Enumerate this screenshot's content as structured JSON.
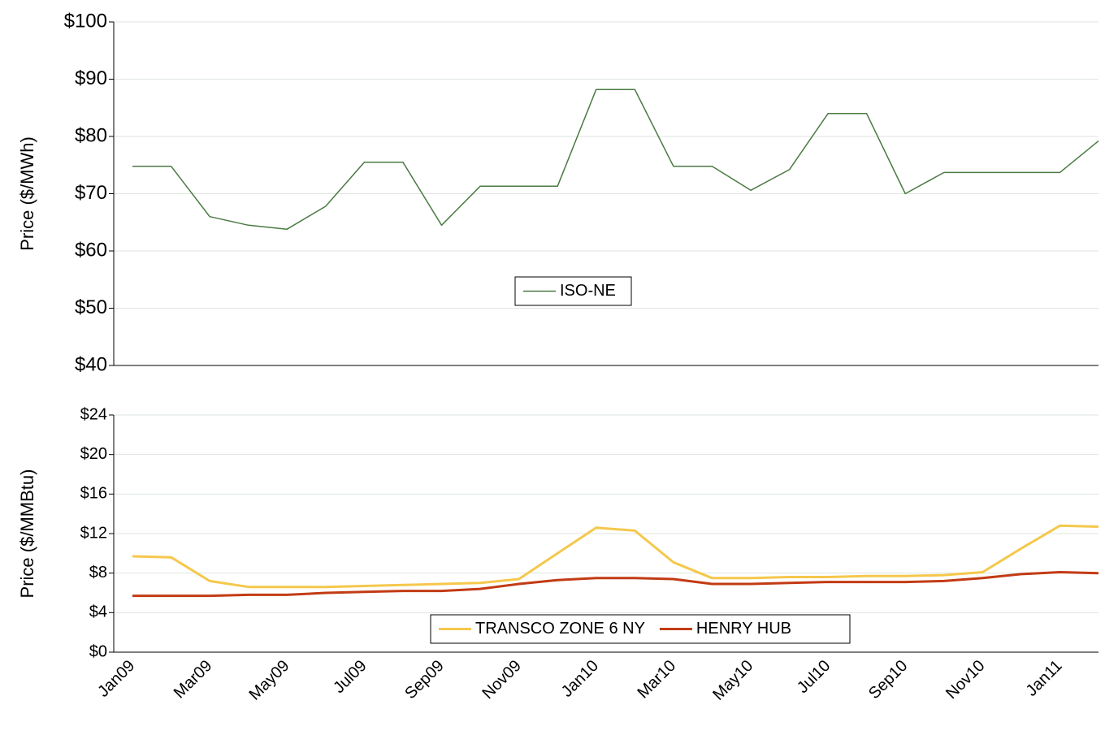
{
  "chart_data": [
    {
      "type": "line",
      "y_label": "Price ($/MWh)",
      "ylim": [
        40,
        100
      ],
      "yticks": [
        {
          "value": 40,
          "label": "$40"
        },
        {
          "value": 50,
          "label": "$50"
        },
        {
          "value": 60,
          "label": "$60"
        },
        {
          "value": 70,
          "label": "$70"
        },
        {
          "value": 80,
          "label": "$80"
        },
        {
          "value": 90,
          "label": "$90"
        },
        {
          "value": 100,
          "label": "$100"
        }
      ],
      "grid": true,
      "series": [
        {
          "name": "ISO-NE",
          "color": "#4a7a42",
          "values": [
            74.8,
            74.8,
            66,
            64.5,
            63.8,
            67.8,
            75.5,
            75.5,
            64.5,
            71.3,
            71.3,
            71.3,
            88.2,
            88.2,
            74.8,
            74.8,
            70.6,
            74.2,
            84,
            84,
            70,
            73.7,
            73.7,
            73.7,
            73.7,
            79.2
          ]
        }
      ]
    },
    {
      "type": "line",
      "y_label": "Price ($/MMBtu)",
      "categories": [
        "Jan09",
        null,
        "Mar09",
        null,
        "May09",
        null,
        "Jul09",
        null,
        "Sep09",
        null,
        "Nov09",
        null,
        "Jan10",
        null,
        "Mar10",
        null,
        "May10",
        null,
        "Jul10",
        null,
        "Sep10",
        null,
        "Nov10",
        null,
        "Jan11",
        null
      ],
      "ylim": [
        0,
        24
      ],
      "yticks": [
        {
          "value": 0,
          "label": "$0"
        },
        {
          "value": 4,
          "label": "$4"
        },
        {
          "value": 8,
          "label": "$8"
        },
        {
          "value": 12,
          "label": "$12"
        },
        {
          "value": 16,
          "label": "$16"
        },
        {
          "value": 20,
          "label": "$20"
        },
        {
          "value": 24,
          "label": "$24"
        }
      ],
      "grid": true,
      "series": [
        {
          "name": "TRANSCO ZONE 6 NY",
          "color": "#f5c84c",
          "values": [
            9.7,
            9.6,
            7.2,
            6.6,
            6.6,
            6.6,
            6.7,
            6.8,
            6.9,
            7.0,
            7.4,
            10.0,
            12.6,
            12.3,
            9.1,
            7.5,
            7.5,
            7.6,
            7.6,
            7.7,
            7.7,
            7.8,
            8.1,
            10.5,
            12.8,
            12.7
          ]
        },
        {
          "name": "HENRY HUB",
          "color": "#c23b14",
          "values": [
            5.7,
            5.7,
            5.7,
            5.8,
            5.8,
            6.0,
            6.1,
            6.2,
            6.2,
            6.4,
            6.9,
            7.3,
            7.5,
            7.5,
            7.4,
            6.9,
            6.9,
            7.0,
            7.1,
            7.1,
            7.1,
            7.2,
            7.5,
            7.9,
            8.1,
            8.0
          ]
        }
      ]
    }
  ]
}
